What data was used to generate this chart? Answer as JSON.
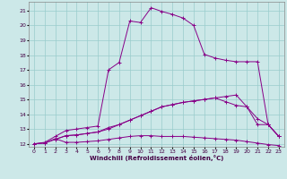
{
  "xlabel": "Windchill (Refroidissement éolien,°C)",
  "background_color": "#cce8e8",
  "grid_color": "#99cccc",
  "line_color": "#880088",
  "xlim": [
    -0.5,
    23.5
  ],
  "ylim": [
    11.8,
    21.6
  ],
  "xticks": [
    0,
    1,
    2,
    3,
    4,
    5,
    6,
    7,
    8,
    9,
    10,
    11,
    12,
    13,
    14,
    15,
    16,
    17,
    18,
    19,
    20,
    21,
    22,
    23
  ],
  "yticks": [
    12,
    13,
    14,
    15,
    16,
    17,
    18,
    19,
    20,
    21
  ],
  "curves": [
    {
      "x": [
        0,
        1,
        2,
        3,
        4,
        5,
        6,
        7,
        8,
        9,
        10,
        11,
        12,
        13,
        14,
        15,
        16,
        17,
        18,
        19,
        20,
        21,
        22,
        23
      ],
      "y": [
        12.0,
        12.05,
        12.35,
        12.1,
        12.1,
        12.15,
        12.2,
        12.3,
        12.4,
        12.5,
        12.55,
        12.55,
        12.5,
        12.5,
        12.5,
        12.45,
        12.4,
        12.35,
        12.3,
        12.25,
        12.15,
        12.05,
        11.95,
        11.88
      ]
    },
    {
      "x": [
        0,
        1,
        2,
        3,
        4,
        5,
        6,
        7,
        8,
        9,
        10,
        11,
        12,
        13,
        14,
        15,
        16,
        17,
        18,
        19,
        20,
        21,
        22,
        23
      ],
      "y": [
        12.0,
        12.05,
        12.3,
        12.55,
        12.6,
        12.7,
        12.8,
        13.0,
        13.3,
        13.6,
        13.9,
        14.2,
        14.5,
        14.65,
        14.8,
        14.9,
        15.0,
        15.1,
        15.2,
        15.3,
        14.5,
        13.7,
        13.3,
        12.5
      ]
    },
    {
      "x": [
        0,
        1,
        2,
        3,
        4,
        5,
        6,
        7,
        8,
        9,
        10,
        11,
        12,
        13,
        14,
        15,
        16,
        17,
        18,
        19,
        20,
        21,
        22,
        23
      ],
      "y": [
        12.0,
        12.1,
        12.5,
        12.9,
        13.0,
        13.1,
        13.2,
        17.0,
        17.5,
        20.3,
        20.2,
        21.2,
        20.95,
        20.75,
        20.5,
        20.0,
        18.05,
        17.8,
        17.65,
        17.55,
        17.55,
        17.55,
        13.3,
        12.5
      ]
    },
    {
      "x": [
        2,
        3,
        4,
        5,
        6,
        7,
        8,
        9,
        10,
        11,
        12,
        13,
        14,
        15,
        16,
        17,
        18,
        19,
        20,
        21,
        22,
        23
      ],
      "y": [
        12.3,
        12.55,
        12.6,
        12.7,
        12.8,
        13.1,
        13.3,
        13.6,
        13.9,
        14.2,
        14.5,
        14.65,
        14.8,
        14.9,
        15.0,
        15.1,
        14.85,
        14.6,
        14.5,
        13.3,
        13.3,
        12.5
      ]
    }
  ]
}
